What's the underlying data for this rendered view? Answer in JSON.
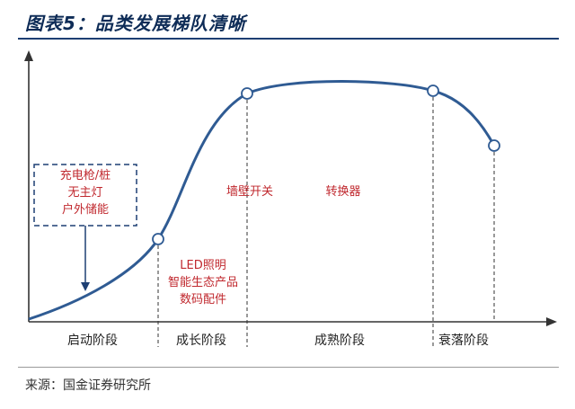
{
  "title": "图表5：品类发展梯队清晰",
  "source": "来源：国金证券研究所",
  "stages": [
    "启动阶段",
    "成长阶段",
    "成熟阶段",
    "衰落阶段"
  ],
  "categories": {
    "startup": [
      "充电枪/桩",
      "无主灯",
      "户外储能"
    ],
    "growth": [
      "LED照明",
      "智能生态产品",
      "数码配件"
    ],
    "mature_left": "墙壁开关",
    "mature_right": "转换器"
  },
  "colors": {
    "curve": "#2f5b93",
    "label": "#c0282e",
    "title": "#0e2c57",
    "axis": "#333333"
  }
}
